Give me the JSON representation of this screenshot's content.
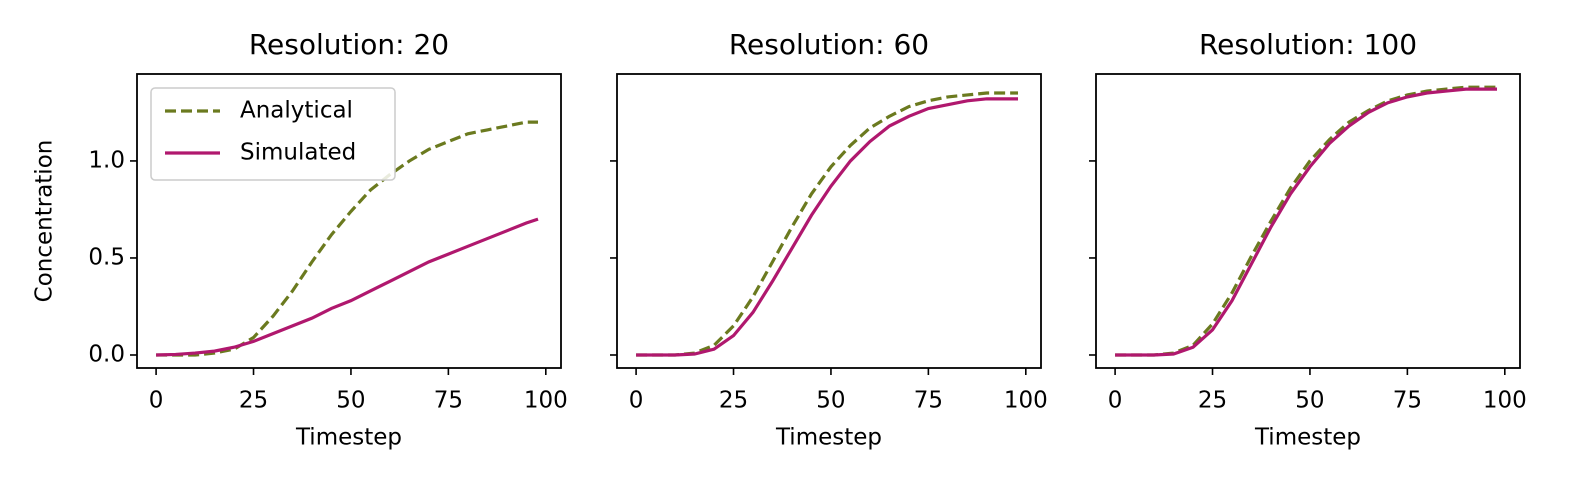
{
  "chart_data": [
    {
      "type": "line",
      "title": "Resolution: 20",
      "xlabel": "Timestep",
      "ylabel": "Concentration",
      "x": [
        0,
        5,
        10,
        15,
        20,
        25,
        30,
        35,
        40,
        45,
        50,
        55,
        60,
        65,
        70,
        75,
        80,
        85,
        90,
        95,
        98
      ],
      "series": [
        {
          "name": "Analytical",
          "color": "#6b7a1f",
          "style": "dashed",
          "values": [
            0,
            0,
            0,
            0.01,
            0.03,
            0.09,
            0.2,
            0.33,
            0.48,
            0.62,
            0.74,
            0.85,
            0.93,
            1.0,
            1.06,
            1.1,
            1.14,
            1.16,
            1.18,
            1.2,
            1.2
          ]
        },
        {
          "name": "Simulated",
          "color": "#b0186e",
          "style": "solid",
          "values": [
            0,
            0.003,
            0.01,
            0.02,
            0.04,
            0.07,
            0.11,
            0.15,
            0.19,
            0.24,
            0.28,
            0.33,
            0.38,
            0.43,
            0.48,
            0.52,
            0.56,
            0.6,
            0.64,
            0.68,
            0.7
          ]
        }
      ],
      "xlim": [
        -4.9,
        103.9
      ],
      "xticks": [
        0,
        25,
        50,
        75,
        100
      ],
      "ylim": [
        -0.067,
        1.448
      ],
      "yticks": [
        {
          "value": 0,
          "label": "0.0"
        },
        0.5,
        {
          "value": 1,
          "label": "1.0"
        }
      ],
      "legend": "upper left"
    },
    {
      "type": "line",
      "title": "Resolution: 60",
      "xlabel": "Timestep",
      "x": [
        0,
        5,
        10,
        15,
        20,
        25,
        30,
        35,
        40,
        45,
        50,
        55,
        60,
        65,
        70,
        75,
        80,
        85,
        90,
        95,
        98
      ],
      "series": [
        {
          "color": "#6b7a1f",
          "style": "dashed",
          "values": [
            0,
            0,
            0,
            0.01,
            0.05,
            0.15,
            0.3,
            0.48,
            0.66,
            0.83,
            0.97,
            1.08,
            1.17,
            1.23,
            1.28,
            1.31,
            1.33,
            1.34,
            1.35,
            1.35,
            1.35
          ]
        },
        {
          "color": "#b0186e",
          "style": "solid",
          "values": [
            0,
            0,
            0,
            0.005,
            0.03,
            0.1,
            0.22,
            0.38,
            0.55,
            0.72,
            0.87,
            1.0,
            1.1,
            1.18,
            1.23,
            1.27,
            1.29,
            1.31,
            1.32,
            1.32,
            1.32
          ]
        }
      ],
      "xlim": [
        -4.9,
        103.9
      ],
      "xticks": [
        0,
        25,
        50,
        75,
        100
      ],
      "ylim": [
        -0.067,
        1.448
      ]
    },
    {
      "type": "line",
      "title": "Resolution: 100",
      "xlabel": "Timestep",
      "x": [
        0,
        5,
        10,
        15,
        20,
        25,
        30,
        35,
        40,
        45,
        50,
        55,
        60,
        65,
        70,
        75,
        80,
        85,
        90,
        95,
        98
      ],
      "series": [
        {
          "color": "#6b7a1f",
          "style": "dashed",
          "values": [
            0,
            0,
            0,
            0.01,
            0.05,
            0.16,
            0.32,
            0.51,
            0.69,
            0.86,
            1.0,
            1.11,
            1.2,
            1.26,
            1.31,
            1.34,
            1.36,
            1.37,
            1.38,
            1.38,
            1.38
          ]
        },
        {
          "color": "#b0186e",
          "style": "solid",
          "values": [
            0,
            0,
            0,
            0.005,
            0.04,
            0.13,
            0.28,
            0.47,
            0.66,
            0.83,
            0.97,
            1.09,
            1.18,
            1.25,
            1.3,
            1.33,
            1.35,
            1.36,
            1.37,
            1.37,
            1.37
          ]
        }
      ],
      "xlim": [
        -4.9,
        103.9
      ],
      "xticks": [
        0,
        25,
        50,
        75,
        100
      ],
      "ylim": [
        -0.067,
        1.448
      ]
    }
  ]
}
